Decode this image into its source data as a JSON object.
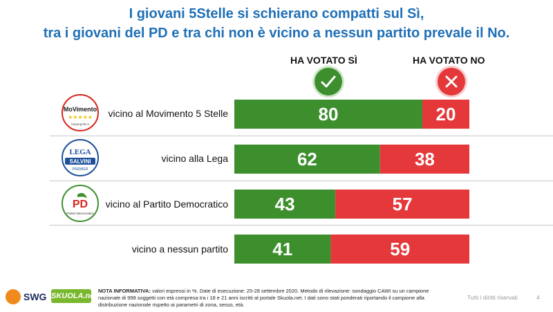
{
  "title_line1": "I giovani 5Stelle si schierano compatti sul Sì,",
  "title_line2": "tra i giovani del PD e tra chi non è vicino a nessun partito prevale il No.",
  "chart_data": {
    "type": "bar",
    "stacked": true,
    "orientation": "horizontal",
    "categories": [
      "vicino al Movimento 5 Stelle",
      "vicino alla Lega",
      "vicino al Partito Democratico",
      "vicino a nessun partito"
    ],
    "series": [
      {
        "name": "HA VOTATO SÌ",
        "values": [
          80,
          62,
          43,
          41
        ],
        "color": "#3d8f2e"
      },
      {
        "name": "HA VOTATO NO",
        "values": [
          20,
          38,
          57,
          59
        ],
        "color": "#e5383b"
      }
    ],
    "unit": "%",
    "xlim": [
      0,
      100
    ]
  },
  "logos": {
    "m5s_text": "MoVimento",
    "m5s_url": "beppegrillo.it",
    "lega_text": "LEGA",
    "lega_salvini": "SALVINI",
    "lega_premier": "PREMIER",
    "pd_text": "PD",
    "pd_caption": "Partito Democratico"
  },
  "footer": {
    "swg": "SWG",
    "skuola": "SKUOLA.net",
    "note_label": "NOTA INFORMATIVA:",
    "note_text": "valori espressi in %. Date di esecuzione: 25-28 settembre 2020. Metodo di rilevazione: sondaggio CAWI su un campione nazionale di 998 soggetti con età compresa tra i 18 e 21 anni iscritti al portale Skuola.net. I dati sono stati ponderati riportando il campione alla distribuzione nazionale rispetto ai parametri di zona, sesso, età.",
    "rights": "Tutti i diritti riservati",
    "page": "4"
  },
  "icons": {
    "yes": "check-icon",
    "no": "cross-icon"
  }
}
